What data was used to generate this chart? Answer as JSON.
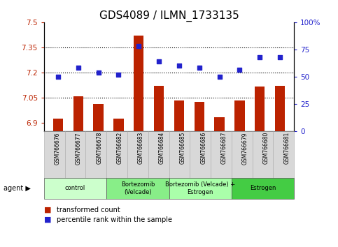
{
  "title": "GDS4089 / ILMN_1733135",
  "samples": [
    "GSM766676",
    "GSM766677",
    "GSM766678",
    "GSM766682",
    "GSM766683",
    "GSM766684",
    "GSM766685",
    "GSM766686",
    "GSM766687",
    "GSM766679",
    "GSM766680",
    "GSM766681"
  ],
  "bar_values": [
    6.925,
    7.055,
    7.01,
    6.925,
    7.42,
    7.12,
    7.03,
    7.025,
    6.93,
    7.03,
    7.115,
    7.12
  ],
  "scatter_values": [
    50,
    58,
    54,
    52,
    78,
    64,
    60,
    58,
    50,
    56,
    68,
    68
  ],
  "ylim_left": [
    6.85,
    7.5
  ],
  "ylim_right": [
    0,
    100
  ],
  "yticks_left": [
    6.9,
    7.05,
    7.2,
    7.35,
    7.5
  ],
  "ytick_labels_left": [
    "6.9",
    "7.05",
    "7.2",
    "7.35",
    "7.5"
  ],
  "yticks_right": [
    0,
    25,
    50,
    75,
    100
  ],
  "ytick_labels_right": [
    "0",
    "25",
    "50",
    "75",
    "100%"
  ],
  "hlines": [
    7.05,
    7.2,
    7.35
  ],
  "bar_color": "#bb2200",
  "scatter_color": "#2222cc",
  "groups": [
    {
      "label": "control",
      "start": 0,
      "end": 3,
      "color": "#ccffcc"
    },
    {
      "label": "Bortezomib\n(Velcade)",
      "start": 3,
      "end": 6,
      "color": "#88ee88"
    },
    {
      "label": "Bortezomib (Velcade) +\nEstrogen",
      "start": 6,
      "end": 9,
      "color": "#aaffaa"
    },
    {
      "label": "Estrogen",
      "start": 9,
      "end": 12,
      "color": "#44cc44"
    }
  ],
  "agent_label": "agent",
  "legend_bar_label": "transformed count",
  "legend_scatter_label": "percentile rank within the sample",
  "title_fontsize": 11,
  "tick_fontsize": 7.5
}
